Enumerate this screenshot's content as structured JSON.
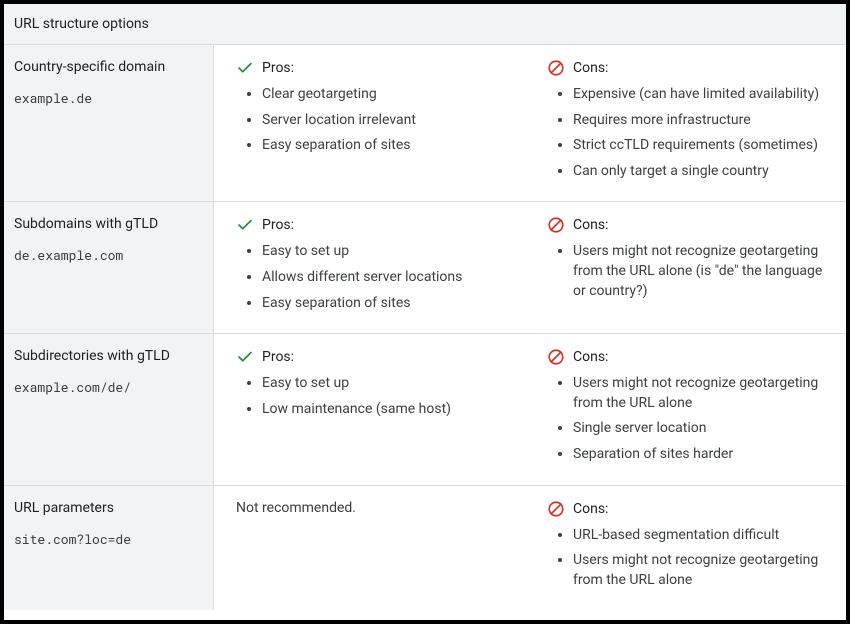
{
  "colors": {
    "header_bg": "#f1f3f4",
    "border": "#dadce0",
    "text": "#202124",
    "subtext": "#3c4043",
    "check": "#1e8e3e",
    "ban": "#d93025"
  },
  "table_title": "URL structure options",
  "pros_label": "Pros:",
  "cons_label": "Cons:",
  "rows": [
    {
      "title": "Country-specific domain",
      "example": "example.de",
      "pros_is_list": true,
      "pros": [
        "Clear geotargeting",
        "Server location irrelevant",
        "Easy separation of sites"
      ],
      "cons": [
        "Expensive (can have limited availability)",
        "Requires more infrastructure",
        "Strict ccTLD requirements (sometimes)",
        "Can only target a single country"
      ]
    },
    {
      "title": "Subdomains with gTLD",
      "example": "de.example.com",
      "pros_is_list": true,
      "pros": [
        "Easy to set up",
        "Allows different server locations",
        "Easy separation of sites"
      ],
      "cons": [
        "Users might not recognize geotargeting from the URL alone (is \"de\" the language or country?)"
      ]
    },
    {
      "title": "Subdirectories with gTLD",
      "example": "example.com/de/",
      "pros_is_list": true,
      "pros": [
        "Easy to set up",
        "Low maintenance (same host)"
      ],
      "cons": [
        "Users might not recognize geotargeting from the URL alone",
        "Single server location",
        "Separation of sites harder"
      ]
    },
    {
      "title": "URL parameters",
      "example": "site.com?loc=de",
      "pros_is_list": false,
      "pros_text": "Not recommended.",
      "cons": [
        "URL-based segmentation difficult",
        "Users might not recognize geotargeting from the URL alone"
      ]
    }
  ]
}
